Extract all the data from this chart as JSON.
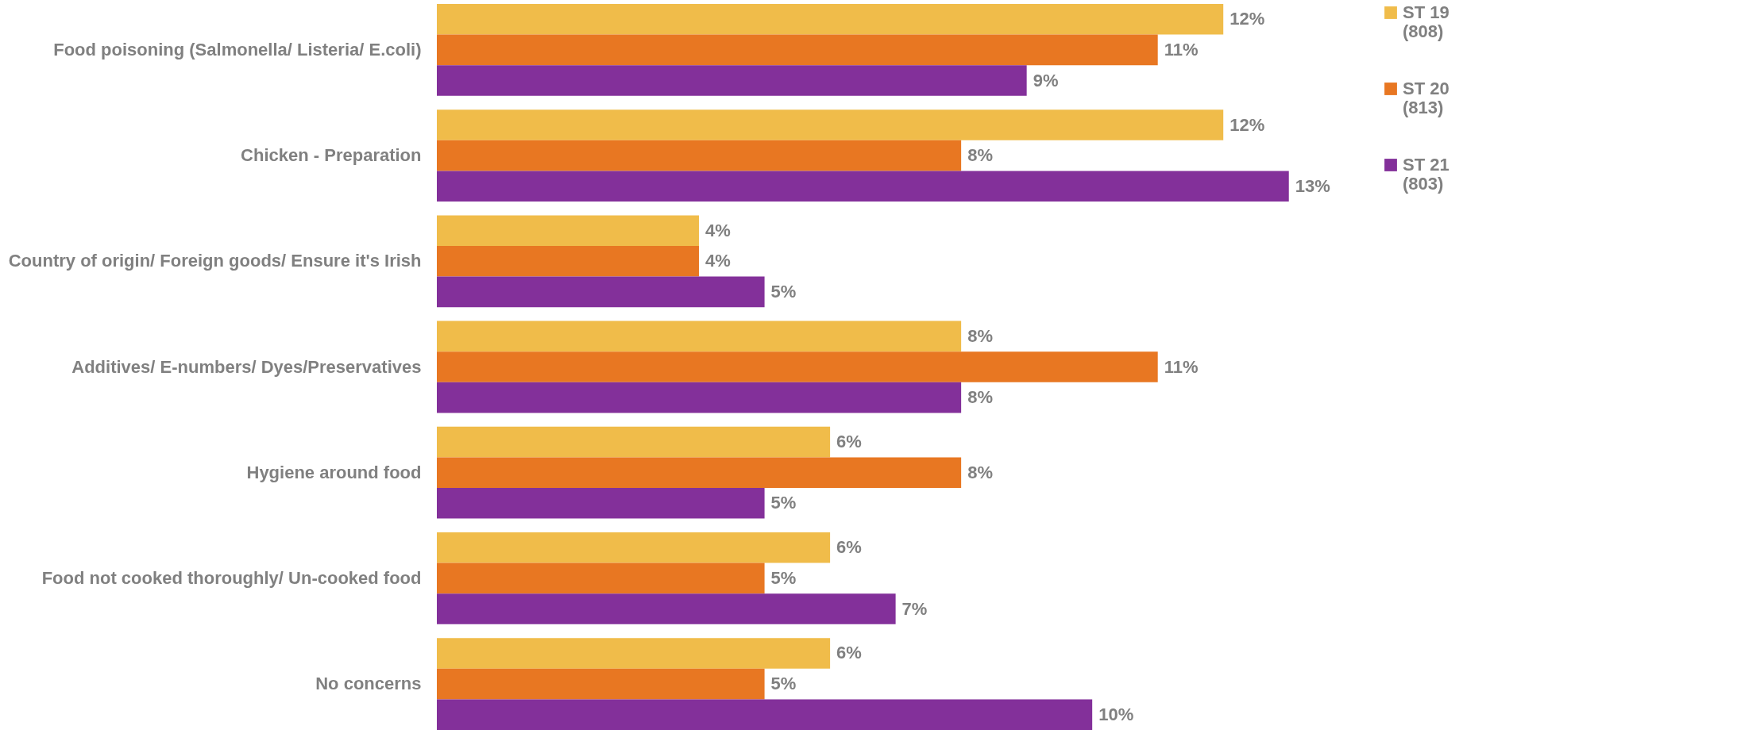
{
  "chart_data": {
    "type": "bar",
    "orientation": "horizontal",
    "categories": [
      "Food poisoning (Salmonella/ Listeria/ E.coli)",
      "Chicken - Preparation",
      "Country of origin/ Foreign goods/ Ensure it's Irish",
      "Additives/ E-numbers/ Dyes/Preservatives",
      "Hygiene around food",
      "Food not cooked thoroughly/ Un-cooked food",
      "No concerns"
    ],
    "series": [
      {
        "name": "ST 19 (808)",
        "color": "#f0bc4a",
        "values": [
          12,
          12,
          4,
          8,
          6,
          6,
          6
        ],
        "value_labels": [
          "12%",
          "12%",
          "4%",
          "8%",
          "6%",
          "6%",
          "6%"
        ]
      },
      {
        "name": "ST 20 (813)",
        "color": "#e87722",
        "values": [
          11,
          8,
          4,
          11,
          8,
          5,
          5
        ],
        "value_labels": [
          "11%",
          "8%",
          "4%",
          "11%",
          "8%",
          "5%",
          "5%"
        ]
      },
      {
        "name": "ST 21 (803)",
        "color": "#83309a",
        "values": [
          9,
          13,
          5,
          8,
          5,
          7,
          10
        ],
        "value_labels": [
          "9%",
          "13%",
          "5%",
          "8%",
          "5%",
          "7%",
          "10%"
        ]
      }
    ],
    "legend": "right"
  }
}
